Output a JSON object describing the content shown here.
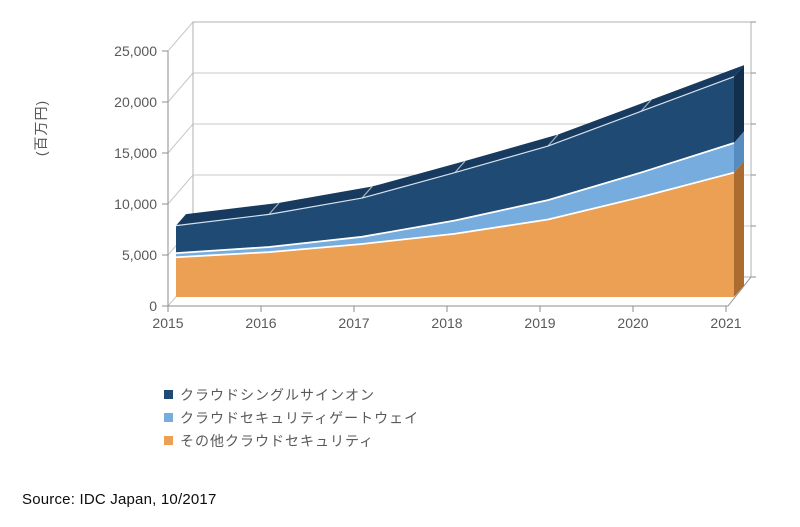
{
  "chart_data": {
    "type": "area",
    "variant": "3d-stacked-area",
    "title": "",
    "x": [
      2015,
      2016,
      2017,
      2018,
      2019,
      2020,
      2021
    ],
    "xticks": [
      "2015",
      "2016",
      "2017",
      "2018",
      "2019",
      "2020",
      "2021"
    ],
    "ylabel": "(百万円)",
    "unit": "百万円",
    "ylim": [
      0,
      25000
    ],
    "ytick_step": 5000,
    "yticks": [
      "0",
      "5,000",
      "10,000",
      "15,000",
      "20,000",
      "25,000"
    ],
    "gridlines": true,
    "legend_position": "bottom-left",
    "stack_order_bottom_to_top": [
      2,
      1,
      0
    ],
    "series": [
      {
        "name": "クラウドシングルサインオン",
        "color": "#1E4A74",
        "top_color": "#173A5E",
        "side_color": "#12304E",
        "values": [
          2700,
          3200,
          3800,
          4700,
          5300,
          6000,
          6500
        ]
      },
      {
        "name": "クラウドセキュリティゲートウェイ",
        "color": "#76ACDE",
        "side_color": "#568CC0",
        "values": [
          400,
          500,
          700,
          1300,
          1900,
          2400,
          2900
        ]
      },
      {
        "name": "その他クラウドセキュリティ",
        "color": "#ECA054",
        "side_color": "#AA6C30",
        "values": [
          3900,
          4400,
          5200,
          6200,
          7600,
          9800,
          12200
        ]
      }
    ],
    "stack_totals": [
      7000,
      8100,
      9700,
      12200,
      14800,
      18200,
      21600
    ]
  },
  "legend": {
    "items": [
      {
        "label": "クラウドシングルサインオン",
        "color": "#1E4A74"
      },
      {
        "label": "クラウドセキュリティゲートウェイ",
        "color": "#76ACDE"
      },
      {
        "label": "その他クラウドセキュリティ",
        "color": "#ECA054"
      }
    ]
  },
  "source": {
    "text": "Source: IDC Japan, 10/2017"
  },
  "colors": {
    "grid": "#C8C8C8",
    "wall_border": "#B0B0B0",
    "axis": "#8C8C8C",
    "tick_text": "#595959",
    "separator": "#FFFFFF",
    "top_edge_highlight": "#D3E2F0"
  }
}
